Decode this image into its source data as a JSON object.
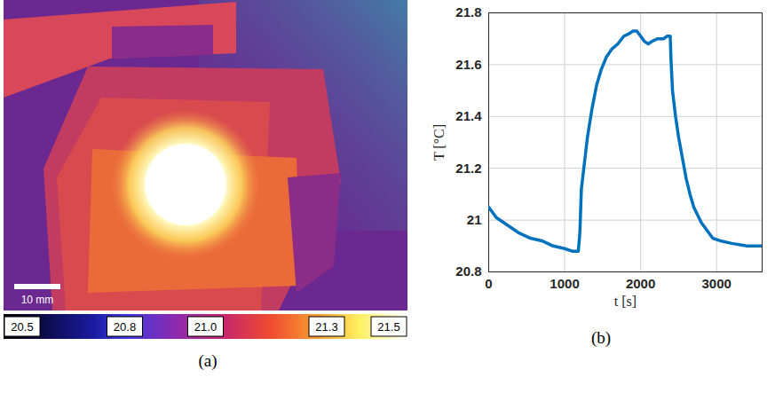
{
  "chart_data": [
    {
      "type": "image",
      "label": "(a)",
      "scale_bar": "10 mm",
      "colorbar": {
        "range": [
          20.5,
          21.5
        ],
        "ticks": [
          20.5,
          20.8,
          {
            "value": 21,
            "label": "21.0"
          },
          21.3,
          21.5
        ]
      }
    },
    {
      "type": "line",
      "label": "(b)",
      "x_label": "t [s]",
      "y_label": "T [°C]",
      "x": [
        0,
        100,
        250,
        400,
        550,
        700,
        850,
        1000,
        1100,
        1180,
        1200,
        1220,
        1260,
        1300,
        1360,
        1420,
        1480,
        1550,
        1620,
        1700,
        1780,
        1850,
        1900,
        1950,
        2000,
        2050,
        2100,
        2150,
        2220,
        2300,
        2350,
        2390,
        2400,
        2420,
        2460,
        2500,
        2550,
        2600,
        2650,
        2700,
        2800,
        2900,
        2950,
        3050,
        3200,
        3400,
        3600
      ],
      "series": [
        {
          "color": "#0072bd",
          "values": [
            21.05,
            21.01,
            20.98,
            20.95,
            20.93,
            20.92,
            20.9,
            20.89,
            20.88,
            20.88,
            20.95,
            21.12,
            21.22,
            21.32,
            21.43,
            21.52,
            21.58,
            21.63,
            21.66,
            21.68,
            21.71,
            21.72,
            21.73,
            21.73,
            21.71,
            21.69,
            21.68,
            21.69,
            21.7,
            21.7,
            21.71,
            21.71,
            21.62,
            21.5,
            21.4,
            21.32,
            21.24,
            21.16,
            21.1,
            21.05,
            20.99,
            20.95,
            20.93,
            20.92,
            20.91,
            20.9,
            20.9
          ]
        }
      ],
      "xlim": [
        0,
        3600
      ],
      "xticks": [
        0,
        1000,
        2000,
        3000
      ],
      "ylim": [
        20.8,
        21.8
      ],
      "yticks": [
        20.8,
        21,
        21.2,
        21.4,
        21.6,
        21.8
      ],
      "grid": true
    }
  ]
}
